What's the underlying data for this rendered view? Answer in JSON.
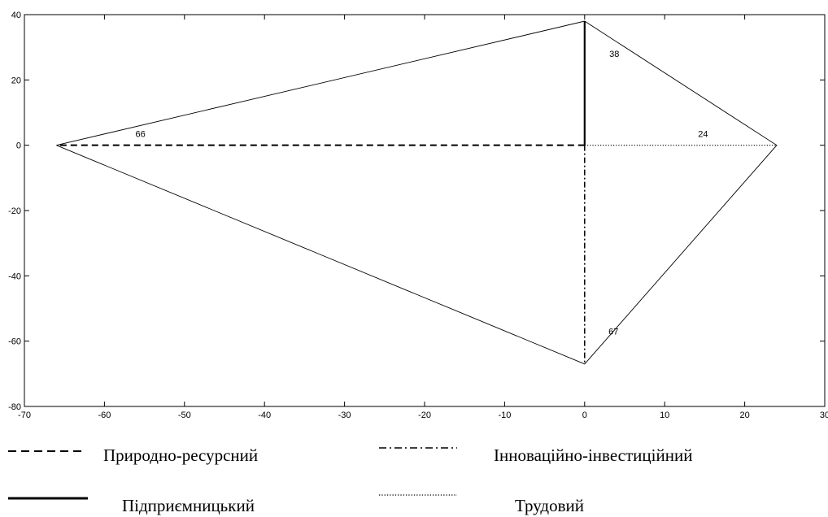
{
  "chart_data": {
    "type": "line",
    "title": "",
    "xlabel": "",
    "ylabel": "",
    "xlim": [
      -70,
      30
    ],
    "ylim": [
      -80,
      40
    ],
    "xticks": [
      -70,
      -60,
      -50,
      -40,
      -30,
      -20,
      -10,
      0,
      10,
      20,
      30
    ],
    "yticks": [
      -80,
      -60,
      -40,
      -20,
      0,
      20,
      40
    ],
    "xtick_labels": [
      "-70",
      "-60",
      "-50",
      "-40",
      "-30",
      "-20",
      "-10",
      "0",
      "10",
      "20",
      "30"
    ],
    "ytick_labels": [
      "-80",
      "-60",
      "-40",
      "-20",
      "0",
      "20",
      "40"
    ],
    "grid": false,
    "legend_position": "bottom",
    "outline": {
      "points": [
        {
          "x": -66,
          "y": 0
        },
        {
          "x": 0,
          "y": 38
        },
        {
          "x": 24,
          "y": 0
        },
        {
          "x": 0,
          "y": -67
        },
        {
          "x": -66,
          "y": 0
        }
      ]
    },
    "series": [
      {
        "name": "Природно-ресурсний",
        "style": "dashed",
        "value": 66,
        "x": [
          0,
          -66
        ],
        "y": [
          0,
          0
        ]
      },
      {
        "name": "Інноваційно-інвестиційний",
        "style": "dashdot",
        "value": 67,
        "x": [
          0,
          0
        ],
        "y": [
          0,
          -67
        ]
      },
      {
        "name": "Підприємницький",
        "style": "solid",
        "value": 38,
        "x": [
          0,
          0
        ],
        "y": [
          0,
          38
        ]
      },
      {
        "name": "Трудовий",
        "style": "dotted",
        "value": 24,
        "x": [
          0,
          24
        ],
        "y": [
          0,
          0
        ]
      }
    ],
    "annotations": [
      {
        "text": "66",
        "x": -55.5,
        "y": 2.5
      },
      {
        "text": "38",
        "x": 3.7,
        "y": 27
      },
      {
        "text": "24",
        "x": 14.8,
        "y": 2.5
      },
      {
        "text": "67",
        "x": 3.6,
        "y": -58
      }
    ]
  }
}
